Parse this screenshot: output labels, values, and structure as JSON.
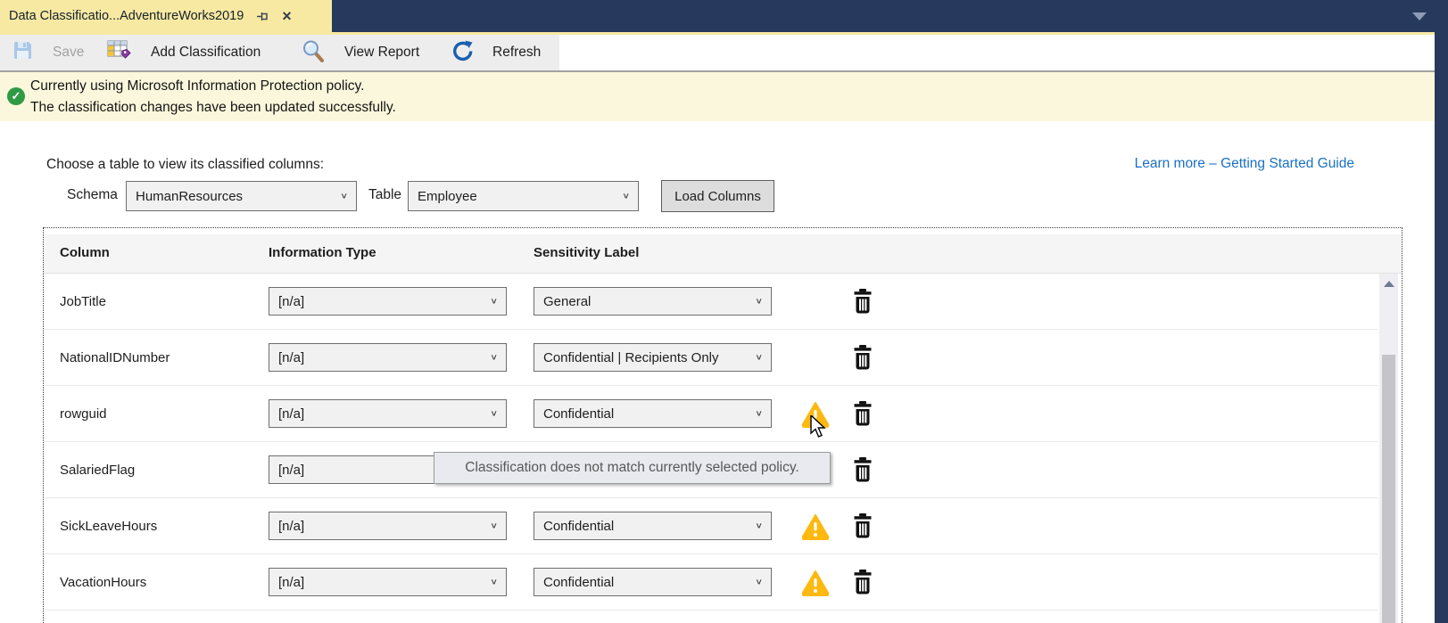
{
  "tab": {
    "title": "Data Classificatio...AdventureWorks2019"
  },
  "toolbar": {
    "save_label": "Save",
    "add_classification_label": "Add Classification",
    "view_report_label": "View Report",
    "refresh_label": "Refresh"
  },
  "info_bar": {
    "line1": "Currently using Microsoft Information Protection policy.",
    "line2": "The classification changes have been updated successfully."
  },
  "content": {
    "choose_label": "Choose a table to view its classified columns:",
    "learn_more_label": "Learn more – Getting Started Guide",
    "schema_label": "Schema",
    "schema_value": "HumanResources",
    "table_label": "Table",
    "table_value": "Employee",
    "load_columns_label": "Load Columns"
  },
  "grid": {
    "headers": [
      "Column",
      "Information Type",
      "Sensitivity Label"
    ],
    "rows": [
      {
        "column": "JobTitle",
        "information_type": "[n/a]",
        "sensitivity_label": "General",
        "warning": false
      },
      {
        "column": "NationalIDNumber",
        "information_type": "[n/a]",
        "sensitivity_label": "Confidential | Recipients Only",
        "warning": false
      },
      {
        "column": "rowguid",
        "information_type": "[n/a]",
        "sensitivity_label": "Confidential",
        "warning": true
      },
      {
        "column": "SalariedFlag",
        "information_type": "[n/a]",
        "sensitivity_label": "",
        "warning": true
      },
      {
        "column": "SickLeaveHours",
        "information_type": "[n/a]",
        "sensitivity_label": "Confidential",
        "warning": true
      },
      {
        "column": "VacationHours",
        "information_type": "[n/a]",
        "sensitivity_label": "Confidential",
        "warning": true
      }
    ]
  },
  "tooltip": {
    "text": "Classification does not match currently selected policy."
  },
  "icons": {
    "tab_pin": "pin-icon",
    "tab_close": "close-icon",
    "save": "save-floppy-icon",
    "add_classification": "table-tag-icon",
    "view_report": "magnifier-icon",
    "refresh": "refresh-icon",
    "success_check": "check-circle-icon",
    "warning": "warning-triangle-icon",
    "delete": "trash-icon",
    "combo_chevron": "chevron-down-icon"
  },
  "colors": {
    "tab_bar": "#27395C",
    "accent_tab": "#F7E9A2",
    "info_bar": "#FBF7DC",
    "success": "#2E9B44",
    "warning": "#FDB911",
    "link": "#1A70C4",
    "refresh": "#1A5FAF"
  }
}
